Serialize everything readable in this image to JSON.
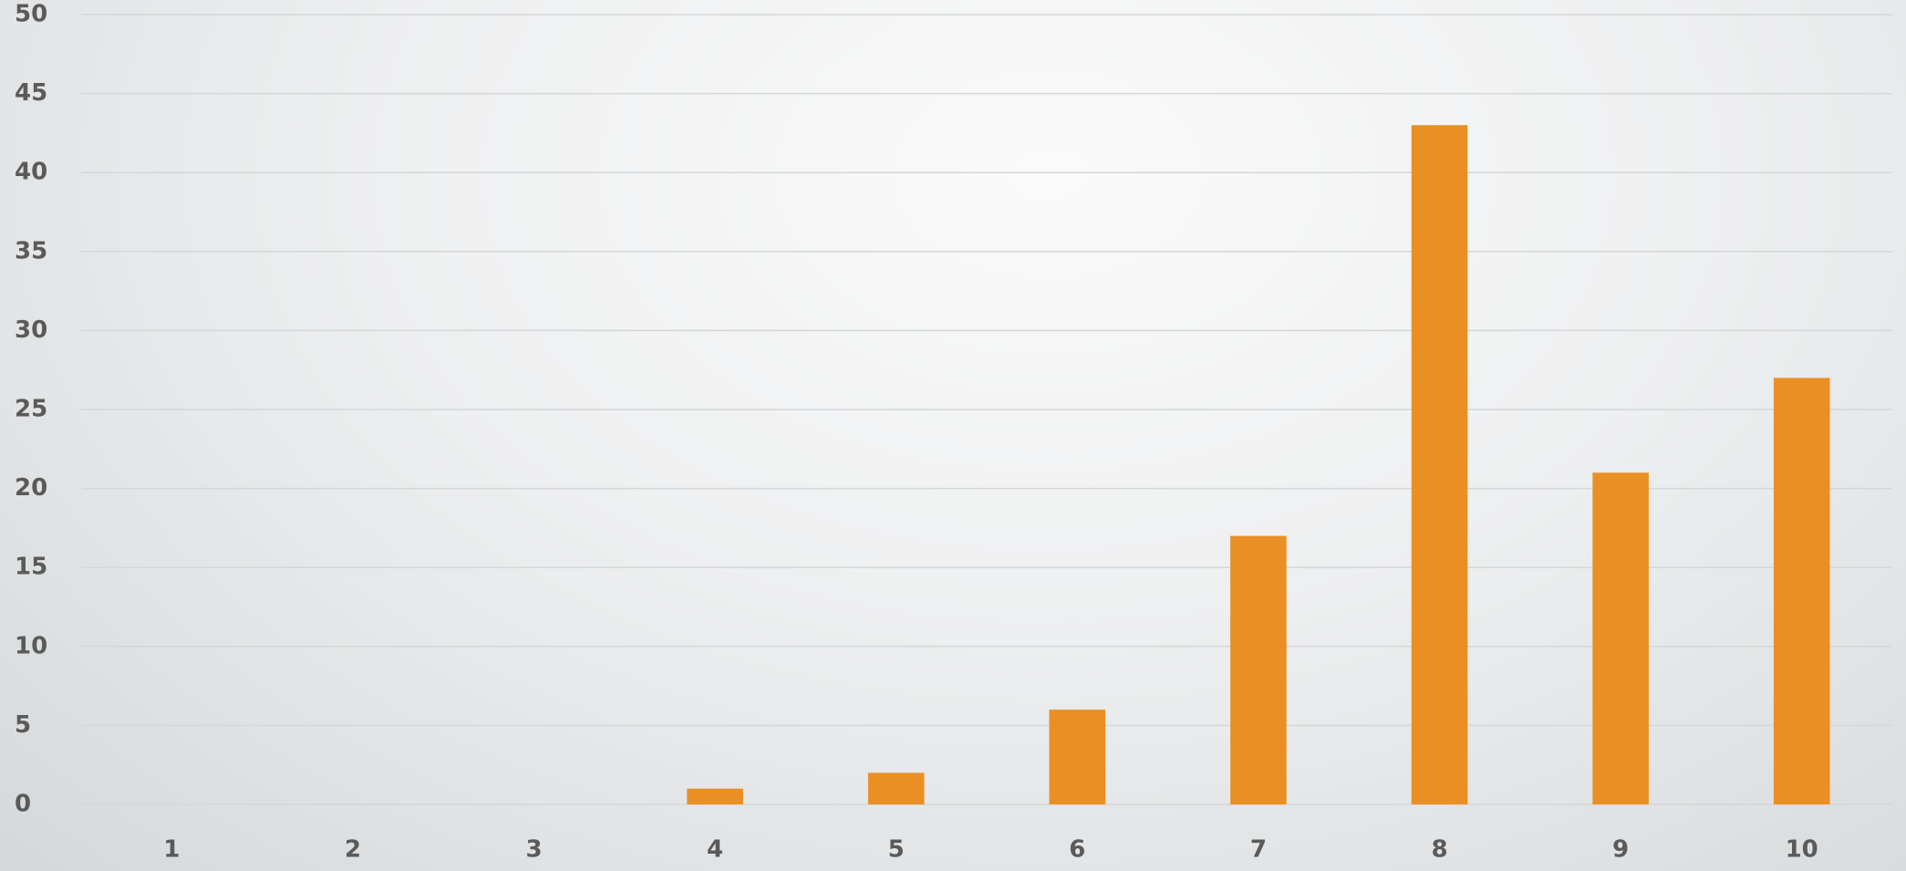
{
  "chart_data": {
    "type": "bar",
    "categories": [
      "1",
      "2",
      "3",
      "4",
      "5",
      "6",
      "7",
      "8",
      "9",
      "10"
    ],
    "values": [
      0,
      0,
      0,
      1,
      2,
      6,
      17,
      43,
      21,
      27
    ],
    "color": "#ea8f23",
    "ylim": [
      0,
      50
    ],
    "yticks": [
      0,
      5,
      10,
      15,
      20,
      25,
      30,
      35,
      40,
      45,
      50
    ],
    "grid": true
  }
}
